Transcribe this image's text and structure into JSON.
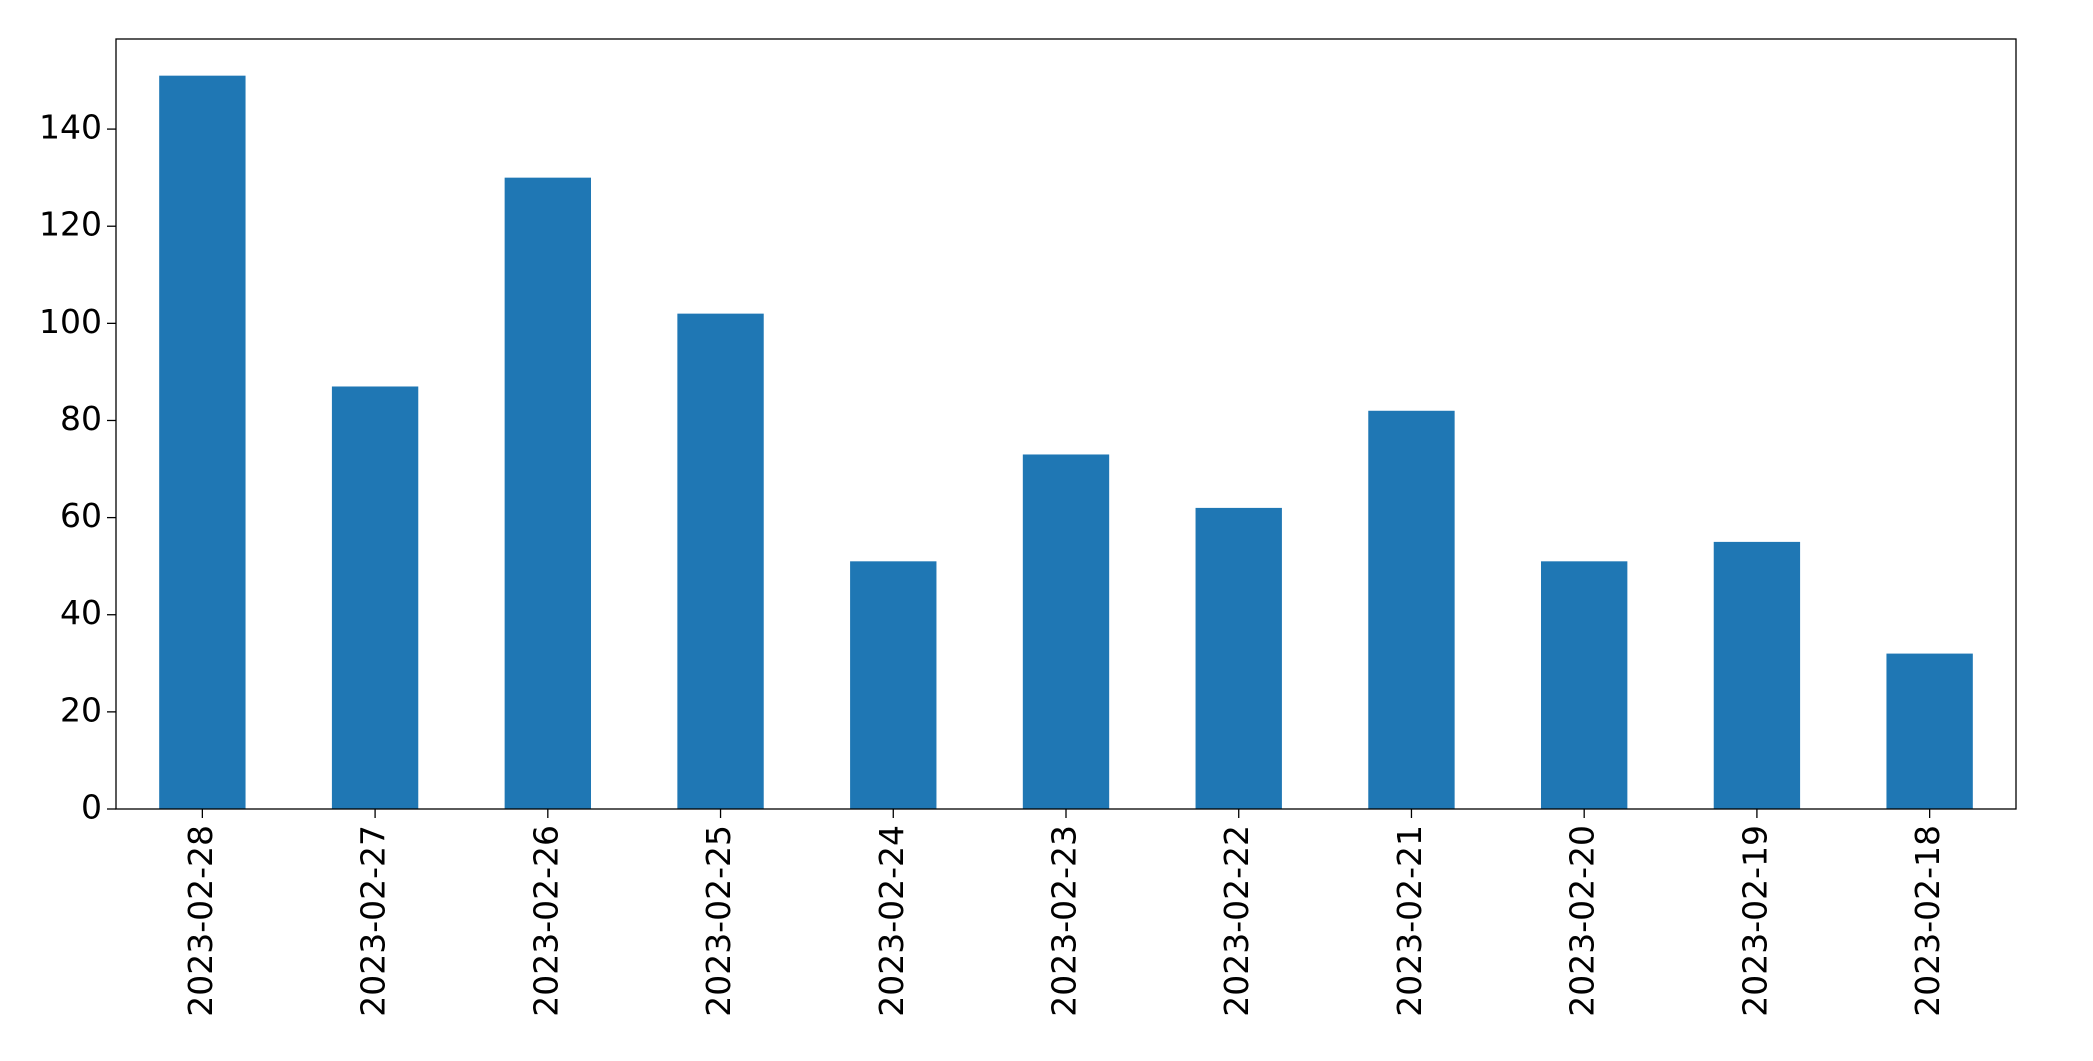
{
  "chart_data": {
    "type": "bar",
    "categories": [
      "2023-02-28",
      "2023-02-27",
      "2023-02-26",
      "2023-02-25",
      "2023-02-24",
      "2023-02-23",
      "2023-02-22",
      "2023-02-21",
      "2023-02-20",
      "2023-02-19",
      "2023-02-18"
    ],
    "values": [
      151,
      87,
      130,
      102,
      51,
      73,
      62,
      82,
      51,
      55,
      32
    ],
    "color": "#1f77b4",
    "ylim": [
      0,
      158.55
    ],
    "yticks": [
      0,
      20,
      40,
      60,
      80,
      100,
      120,
      140
    ],
    "grid": false
  }
}
